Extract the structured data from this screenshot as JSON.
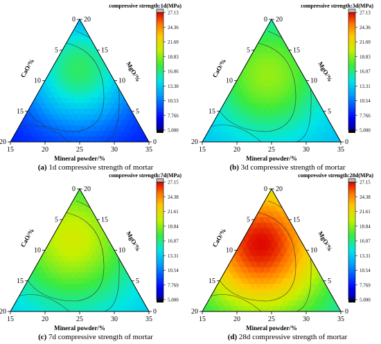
{
  "chart_data": [
    {
      "type": "heatmap",
      "subtype": "ternary contour map",
      "caption_label": "(a)",
      "caption_text": "1d compressive strength of mortar",
      "title": "compressive strength:1d(MPa)",
      "colorbar_ticks": [
        "27.13",
        "24.36",
        "21.60",
        "18.83",
        "16.06",
        "13.30",
        "10.53",
        "7.766",
        "5.000"
      ],
      "colorbar_range": [
        5.0,
        27.13
      ],
      "axes": {
        "bottom": {
          "label": "Mineral powder/%",
          "ticks": [
            "15",
            "20",
            "25",
            "30",
            "35"
          ]
        },
        "left": {
          "label": "CaO/%",
          "ticks": [
            "0",
            "5",
            "10",
            "15",
            "20"
          ]
        },
        "right": {
          "label": "MgO/%",
          "ticks": [
            "20",
            "15",
            "10",
            "5",
            "0"
          ]
        }
      },
      "field": {
        "peak": 16.5,
        "peak_pos": [
          0.6,
          0.2,
          0.2
        ],
        "spread": 0.42,
        "min": 7.5
      }
    },
    {
      "type": "heatmap",
      "subtype": "ternary contour map",
      "caption_label": "(b)",
      "caption_text": "3d compressive strength of mortar",
      "title": "compressive strength:3d(MPa)",
      "colorbar_ticks": [
        "27.13",
        "24.36",
        "21.60",
        "18.83",
        "16.07",
        "13.31",
        "10.54",
        "7.766",
        "5.000"
      ],
      "colorbar_range": [
        5.0,
        27.13
      ],
      "axes": {
        "bottom": {
          "label": "Mineral powder/%",
          "ticks": [
            "15",
            "20",
            "25",
            "30",
            "35"
          ]
        },
        "left": {
          "label": "CaO/%",
          "ticks": [
            "0",
            "5",
            "10",
            "15",
            "20"
          ]
        },
        "right": {
          "label": "MgO/%",
          "ticks": [
            "20",
            "15",
            "10",
            "5",
            "0"
          ]
        }
      },
      "field": {
        "peak": 19.0,
        "peak_pos": [
          0.55,
          0.25,
          0.2
        ],
        "spread": 0.42,
        "min": 12.5
      }
    },
    {
      "type": "heatmap",
      "subtype": "ternary contour map",
      "caption_label": "(c)",
      "caption_text": "7d compressive strength of mortar",
      "title": "compressive strength:7d(MPa)",
      "colorbar_ticks": [
        "27.15",
        "24.38",
        "21.61",
        "18.84",
        "16.07",
        "13.31",
        "10.54",
        "7.769",
        "5.000"
      ],
      "colorbar_range": [
        5.0,
        27.15
      ],
      "axes": {
        "bottom": {
          "label": "Mineral powder/%",
          "ticks": [
            "15",
            "20",
            "25",
            "30",
            "35"
          ]
        },
        "left": {
          "label": "CaO/%",
          "ticks": [
            "0",
            "5",
            "10",
            "15",
            "20"
          ]
        },
        "right": {
          "label": "MgO/%",
          "ticks": [
            "20",
            "15",
            "10",
            "5",
            "0"
          ]
        }
      },
      "field": {
        "peak": 20.5,
        "peak_pos": [
          0.6,
          0.25,
          0.15
        ],
        "spread": 0.45,
        "min": 13.0
      }
    },
    {
      "type": "heatmap",
      "subtype": "ternary contour map",
      "caption_label": "(d)",
      "caption_text": "28d compressive strength of mortar",
      "title": "compressive strength:28d(MPa)",
      "colorbar_ticks": [
        "27.15",
        "24.38",
        "21.61",
        "18.84",
        "16.07",
        "13.31",
        "10.54",
        "7.769",
        "5.000"
      ],
      "colorbar_range": [
        5.0,
        27.15
      ],
      "axes": {
        "bottom": {
          "label": "Mineral powder/%",
          "ticks": [
            "15",
            "20",
            "25",
            "30",
            "35"
          ]
        },
        "left": {
          "label": "CaO/%",
          "ticks": [
            "0",
            "5",
            "10",
            "15",
            "20"
          ]
        },
        "right": {
          "label": "MgO/%",
          "ticks": [
            "20",
            "15",
            "10",
            "5",
            "0"
          ]
        }
      },
      "field": {
        "peak": 27.0,
        "peak_pos": [
          0.55,
          0.3,
          0.15
        ],
        "spread": 0.5,
        "min": 14.0
      }
    }
  ]
}
